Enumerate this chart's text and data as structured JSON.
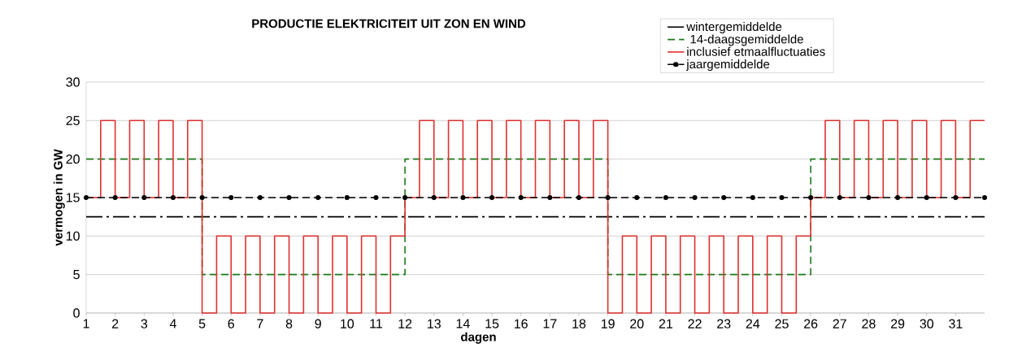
{
  "chart_data": {
    "type": "line",
    "title": "PRODUCTIE ELEKTRICITEIT UIT ZON EN WIND",
    "xlabel": "dagen",
    "ylabel": "vermogen in GW",
    "xlim": [
      1,
      32
    ],
    "xticks": [
      1,
      2,
      3,
      4,
      5,
      6,
      7,
      8,
      9,
      10,
      11,
      12,
      13,
      14,
      15,
      16,
      17,
      18,
      19,
      20,
      21,
      22,
      23,
      24,
      25,
      26,
      27,
      28,
      29,
      30,
      31
    ],
    "ylim": [
      0,
      30
    ],
    "yticks": [
      0,
      5,
      10,
      15,
      20,
      25,
      30
    ],
    "grid": "y",
    "legend": "top right",
    "series": [
      {
        "name": "wintergemiddelde",
        "type": "line",
        "color": "#000000",
        "line_style": "dashdot",
        "x": [
          1,
          32
        ],
        "values": [
          12.5,
          12.5
        ]
      },
      {
        "name": " 14-daagsgemiddelde",
        "type": "step",
        "color": "#1a7a1a",
        "line_style": "dashed",
        "x": [
          1,
          5,
          12,
          19,
          26,
          32
        ],
        "values": [
          20,
          5,
          20,
          5,
          20,
          20
        ]
      },
      {
        "name": "inclusief etmaalfluctuaties",
        "type": "step",
        "color": "#e03030",
        "line_style": "solid",
        "x": [
          1,
          1.5,
          2,
          2.5,
          3,
          3.5,
          4,
          4.5,
          5,
          5.5,
          6,
          6.5,
          7,
          7.5,
          8,
          8.5,
          9,
          9.5,
          10,
          10.5,
          11,
          11.5,
          12,
          12.5,
          13,
          13.5,
          14,
          14.5,
          15,
          15.5,
          16,
          16.5,
          17,
          17.5,
          18,
          18.5,
          19,
          19.5,
          20,
          20.5,
          21,
          21.5,
          22,
          22.5,
          23,
          23.5,
          24,
          24.5,
          25,
          25.5,
          26,
          26.5,
          27,
          27.5,
          28,
          28.5,
          29,
          29.5,
          30,
          30.5,
          31,
          31.5,
          32
        ],
        "values": [
          15,
          25,
          15,
          25,
          15,
          25,
          15,
          25,
          0,
          10,
          0,
          10,
          0,
          10,
          0,
          10,
          0,
          10,
          0,
          10,
          0,
          10,
          15,
          25,
          15,
          25,
          15,
          25,
          15,
          25,
          15,
          25,
          15,
          25,
          15,
          25,
          0,
          10,
          0,
          10,
          0,
          10,
          0,
          10,
          0,
          10,
          0,
          10,
          0,
          10,
          15,
          25,
          15,
          25,
          15,
          25,
          15,
          25,
          15,
          25,
          15,
          25,
          25
        ]
      },
      {
        "name": "jaargemiddelde",
        "type": "line",
        "color": "#000000",
        "line_style": "dashed",
        "marker": "circle",
        "x": [
          1,
          2,
          3,
          4,
          5,
          6,
          7,
          8,
          9,
          10,
          11,
          12,
          13,
          14,
          15,
          16,
          17,
          18,
          19,
          20,
          21,
          22,
          23,
          24,
          25,
          26,
          27,
          28,
          29,
          30,
          31,
          32
        ],
        "values": [
          15,
          15,
          15,
          15,
          15,
          15,
          15,
          15,
          15,
          15,
          15,
          15,
          15,
          15,
          15,
          15,
          15,
          15,
          15,
          15,
          15,
          15,
          15,
          15,
          15,
          15,
          15,
          15,
          15,
          15,
          15,
          15
        ]
      }
    ]
  }
}
